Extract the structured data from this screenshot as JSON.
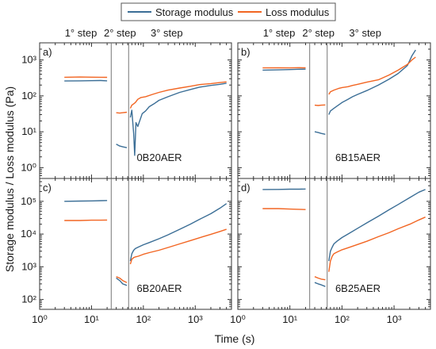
{
  "legend": {
    "items": [
      {
        "label": "Storage modulus",
        "color": "#3b6e96"
      },
      {
        "label": "Loss modulus",
        "color": "#f26522"
      }
    ]
  },
  "axes": {
    "xlabel": "Time (s)",
    "ylabel": "Storage modulus / Loss modulus (Pa)",
    "x_scale": "log",
    "y_scale": "log",
    "x_tick_values": [
      1,
      10,
      100,
      1000
    ],
    "x_tick_labels": [
      "10⁰",
      "10¹",
      "10²",
      "10³"
    ],
    "xlim": [
      1,
      5000
    ]
  },
  "step_labels": [
    "1° step",
    "2° step",
    "3° step"
  ],
  "step_boundaries_s": [
    24,
    52
  ],
  "chart_data": [
    {
      "type": "line",
      "panel": "a)",
      "sample": "0B20AER",
      "ylim": [
        0.5,
        3000
      ],
      "y_tick_values": [
        1,
        10,
        100,
        1000
      ],
      "y_tick_labels": [
        "10⁰",
        "10¹",
        "10²",
        "10³"
      ],
      "series": [
        {
          "name": "Storage modulus",
          "segments": [
            [
              [
                3,
                260
              ],
              [
                6,
                262
              ],
              [
                10,
                265
              ],
              [
                15,
                268
              ],
              [
                20,
                262
              ]
            ],
            [
              [
                30,
                4.5
              ],
              [
                35,
                4.0
              ],
              [
                40,
                3.8
              ],
              [
                48,
                3.6
              ]
            ],
            [
              [
                56,
                25
              ],
              [
                60,
                40
              ],
              [
                65,
                9
              ],
              [
                68,
                2.2
              ],
              [
                72,
                18
              ],
              [
                78,
                14
              ],
              [
                85,
                20
              ],
              [
                95,
                32
              ],
              [
                110,
                38
              ],
              [
                130,
                50
              ],
              [
                160,
                60
              ],
              [
                200,
                75
              ],
              [
                300,
                95
              ],
              [
                500,
                125
              ],
              [
                800,
                150
              ],
              [
                1200,
                175
              ],
              [
                2000,
                195
              ],
              [
                3000,
                210
              ],
              [
                4000,
                225
              ]
            ]
          ]
        },
        {
          "name": "Loss modulus",
          "segments": [
            [
              [
                3,
                330
              ],
              [
                6,
                335
              ],
              [
                10,
                332
              ],
              [
                15,
                330
              ],
              [
                20,
                328
              ]
            ],
            [
              [
                30,
                34
              ],
              [
                35,
                33
              ],
              [
                40,
                34
              ],
              [
                48,
                35
              ]
            ],
            [
              [
                56,
                45
              ],
              [
                60,
                55
              ],
              [
                65,
                60
              ],
              [
                70,
                65
              ],
              [
                78,
                80
              ],
              [
                90,
                90
              ],
              [
                110,
                95
              ],
              [
                150,
                110
              ],
              [
                200,
                125
              ],
              [
                300,
                145
              ],
              [
                500,
                165
              ],
              [
                800,
                185
              ],
              [
                1200,
                205
              ],
              [
                2000,
                220
              ],
              [
                3000,
                235
              ],
              [
                4000,
                245
              ]
            ]
          ]
        }
      ]
    },
    {
      "type": "line",
      "panel": "b)",
      "sample": "6B15AER",
      "ylim": [
        0.5,
        3000
      ],
      "y_tick_values": [
        1,
        10,
        100,
        1000
      ],
      "y_tick_labels": [
        "10⁰",
        "10¹",
        "10²",
        "10³"
      ],
      "series": [
        {
          "name": "Storage modulus",
          "segments": [
            [
              [
                3,
                520
              ],
              [
                6,
                530
              ],
              [
                10,
                540
              ],
              [
                15,
                550
              ],
              [
                20,
                555
              ]
            ],
            [
              [
                30,
                10
              ],
              [
                35,
                9.5
              ],
              [
                40,
                9.0
              ],
              [
                48,
                8.5
              ]
            ],
            [
              [
                56,
                30
              ],
              [
                60,
                38
              ],
              [
                70,
                45
              ],
              [
                85,
                55
              ],
              [
                100,
                65
              ],
              [
                130,
                80
              ],
              [
                160,
                95
              ],
              [
                200,
                110
              ],
              [
                300,
                140
              ],
              [
                500,
                200
              ],
              [
                800,
                290
              ],
              [
                1200,
                420
              ],
              [
                1800,
                700
              ],
              [
                2200,
                1300
              ],
              [
                2600,
                1900
              ]
            ]
          ]
        },
        {
          "name": "Loss modulus",
          "segments": [
            [
              [
                3,
                600
              ],
              [
                6,
                605
              ],
              [
                10,
                600
              ],
              [
                15,
                610
              ],
              [
                20,
                605
              ]
            ],
            [
              [
                30,
                55
              ],
              [
                35,
                54
              ],
              [
                40,
                55
              ],
              [
                48,
                56
              ]
            ],
            [
              [
                56,
                110
              ],
              [
                60,
                130
              ],
              [
                70,
                145
              ],
              [
                85,
                160
              ],
              [
                100,
                170
              ],
              [
                130,
                180
              ],
              [
                160,
                195
              ],
              [
                200,
                210
              ],
              [
                300,
                240
              ],
              [
                500,
                280
              ],
              [
                800,
                380
              ],
              [
                1200,
                520
              ],
              [
                1800,
                750
              ],
              [
                2200,
                1000
              ],
              [
                2600,
                1200
              ]
            ]
          ]
        }
      ]
    },
    {
      "type": "line",
      "panel": "c)",
      "sample": "6B20AER",
      "ylim": [
        50,
        500000
      ],
      "y_tick_values": [
        100,
        1000,
        10000,
        100000
      ],
      "y_tick_labels": [
        "10²",
        "10³",
        "10⁴",
        "10⁵"
      ],
      "series": [
        {
          "name": "Storage modulus",
          "segments": [
            [
              [
                3,
                100000
              ],
              [
                6,
                102000
              ],
              [
                10,
                103000
              ],
              [
                15,
                105000
              ],
              [
                20,
                106000
              ]
            ],
            [
              [
                30,
                450
              ],
              [
                35,
                380
              ],
              [
                40,
                300
              ],
              [
                48,
                270
              ]
            ],
            [
              [
                56,
                1500
              ],
              [
                60,
                2500
              ],
              [
                65,
                3200
              ],
              [
                70,
                3600
              ],
              [
                80,
                4000
              ],
              [
                100,
                4700
              ],
              [
                130,
                5500
              ],
              [
                200,
                7200
              ],
              [
                300,
                9500
              ],
              [
                500,
                14000
              ],
              [
                800,
                20000
              ],
              [
                1200,
                28000
              ],
              [
                2000,
                42000
              ],
              [
                3000,
                62000
              ],
              [
                4000,
                85000
              ]
            ]
          ]
        },
        {
          "name": "Loss modulus",
          "segments": [
            [
              [
                3,
                26000
              ],
              [
                6,
                26000
              ],
              [
                10,
                26500
              ],
              [
                15,
                26500
              ],
              [
                20,
                26800
              ]
            ],
            [
              [
                30,
                500
              ],
              [
                35,
                450
              ],
              [
                40,
                380
              ],
              [
                48,
                330
              ]
            ],
            [
              [
                56,
                1200
              ],
              [
                60,
                1700
              ],
              [
                65,
                1900
              ],
              [
                70,
                2000
              ],
              [
                80,
                2100
              ],
              [
                100,
                2400
              ],
              [
                130,
                2700
              ],
              [
                200,
                3200
              ],
              [
                300,
                3900
              ],
              [
                500,
                5000
              ],
              [
                800,
                6300
              ],
              [
                1200,
                7700
              ],
              [
                2000,
                9800
              ],
              [
                3000,
                12000
              ],
              [
                4000,
                14000
              ]
            ]
          ]
        }
      ]
    },
    {
      "type": "line",
      "panel": "d)",
      "sample": "6B25AER",
      "ylim": [
        50,
        500000
      ],
      "y_tick_values": [
        100,
        1000,
        10000,
        100000
      ],
      "y_tick_labels": [
        "10²",
        "10³",
        "10⁴",
        "10⁵"
      ],
      "series": [
        {
          "name": "Storage modulus",
          "segments": [
            [
              [
                3,
                230000
              ],
              [
                6,
                232000
              ],
              [
                10,
                235000
              ],
              [
                15,
                235000
              ],
              [
                20,
                238000
              ]
            ],
            [
              [
                30,
                330
              ],
              [
                35,
                300
              ],
              [
                40,
                280
              ],
              [
                48,
                250
              ]
            ],
            [
              [
                56,
                1500
              ],
              [
                60,
                3000
              ],
              [
                65,
                4000
              ],
              [
                70,
                5000
              ],
              [
                80,
                6000
              ],
              [
                100,
                7800
              ],
              [
                130,
                10000
              ],
              [
                200,
                15000
              ],
              [
                300,
                22000
              ],
              [
                500,
                35000
              ],
              [
                800,
                55000
              ],
              [
                1200,
                80000
              ],
              [
                2000,
                130000
              ],
              [
                3000,
                190000
              ],
              [
                4000,
                230000
              ]
            ]
          ]
        },
        {
          "name": "Loss modulus",
          "segments": [
            [
              [
                3,
                60000
              ],
              [
                6,
                60000
              ],
              [
                10,
                58000
              ],
              [
                15,
                57000
              ],
              [
                20,
                56000
              ]
            ],
            [
              [
                30,
                500
              ],
              [
                35,
                450
              ],
              [
                40,
                420
              ],
              [
                48,
                400
              ]
            ],
            [
              [
                56,
                700
              ],
              [
                60,
                1500
              ],
              [
                65,
                2100
              ],
              [
                70,
                2500
              ],
              [
                80,
                2800
              ],
              [
                100,
                3300
              ],
              [
                130,
                3800
              ],
              [
                200,
                4800
              ],
              [
                300,
                6000
              ],
              [
                500,
                8300
              ],
              [
                800,
                11000
              ],
              [
                1200,
                14500
              ],
              [
                2000,
                20000
              ],
              [
                3000,
                27000
              ],
              [
                4000,
                33000
              ]
            ]
          ]
        }
      ]
    }
  ]
}
